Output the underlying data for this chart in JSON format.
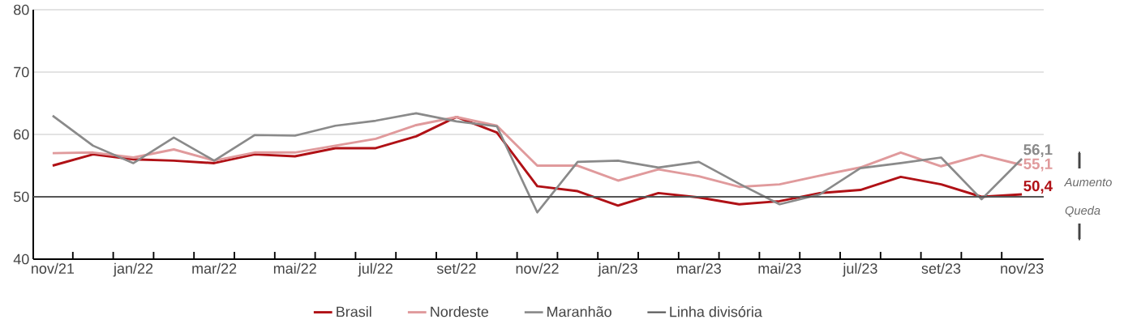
{
  "chart_data": {
    "type": "line",
    "categories": [
      "nov/21",
      null,
      "jan/22",
      null,
      "mar/22",
      null,
      "mai/22",
      null,
      "jul/22",
      null,
      "set/22",
      null,
      "nov/22",
      null,
      "jan/23",
      null,
      "mar/23",
      null,
      "mai/23",
      null,
      "jul/23",
      null,
      "set/23",
      null,
      "nov/23"
    ],
    "series": [
      {
        "name": "Brasil",
        "color": "#b01116",
        "values": [
          55.0,
          56.8,
          56.0,
          55.8,
          55.4,
          56.8,
          56.5,
          57.8,
          57.8,
          59.7,
          62.8,
          60.3,
          51.7,
          50.9,
          48.6,
          50.6,
          49.9,
          48.8,
          49.3,
          50.6,
          51.1,
          53.2,
          52.0,
          50.0,
          50.4
        ],
        "value_labels": [
          null,
          null,
          null,
          null,
          null,
          null,
          null,
          null,
          null,
          null,
          null,
          null,
          null,
          null,
          null,
          null,
          null,
          null,
          null,
          null,
          null,
          null,
          null,
          null,
          "50,4"
        ]
      },
      {
        "name": "Nordeste",
        "color": "#e09a9c",
        "values": [
          57.0,
          57.1,
          56.3,
          57.6,
          55.8,
          57.1,
          57.1,
          58.2,
          59.3,
          61.5,
          62.8,
          61.4,
          55.0,
          55.0,
          52.6,
          54.4,
          53.3,
          51.6,
          52.0,
          53.4,
          54.7,
          57.1,
          54.9,
          56.7,
          55.1
        ],
        "value_labels": [
          null,
          null,
          null,
          null,
          null,
          null,
          null,
          null,
          null,
          null,
          null,
          null,
          null,
          null,
          null,
          null,
          null,
          null,
          null,
          null,
          null,
          null,
          null,
          null,
          "55,1"
        ]
      },
      {
        "name": "Maranhão",
        "color": "#8a8a8a",
        "values": [
          63.0,
          58.2,
          55.4,
          59.5,
          55.8,
          59.9,
          59.8,
          61.4,
          62.2,
          63.4,
          62.1,
          61.3,
          47.5,
          55.6,
          55.8,
          54.7,
          55.6,
          52.1,
          48.8,
          50.4,
          54.6,
          55.4,
          56.3,
          49.6,
          56.1
        ],
        "value_labels": [
          null,
          null,
          null,
          null,
          null,
          null,
          null,
          null,
          null,
          null,
          null,
          null,
          null,
          null,
          null,
          null,
          null,
          null,
          null,
          null,
          null,
          null,
          null,
          null,
          "56,1"
        ]
      }
    ],
    "ylim": [
      40,
      80
    ],
    "yticks": [
      40,
      50,
      60,
      70,
      80
    ],
    "grid": "y",
    "legend": "bottom",
    "ref_lines": [
      {
        "axis": "y",
        "value": 50,
        "label": "Linha divisória",
        "color": "#555555"
      }
    ],
    "annotations": [
      "Aumento",
      "Queda"
    ]
  }
}
